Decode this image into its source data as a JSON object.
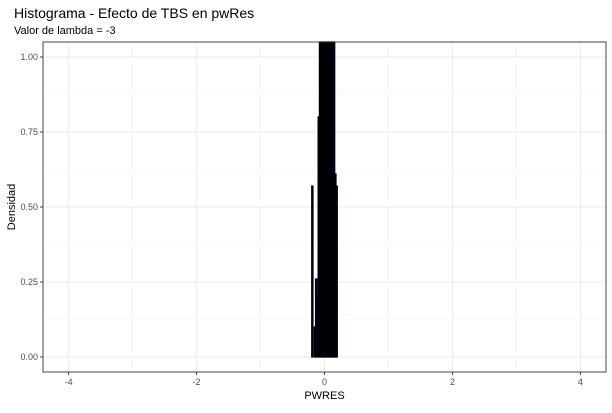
{
  "chart_data": {
    "type": "histogram",
    "title": "Histograma - Efecto de TBS en pwRes",
    "subtitle": "Valor de lambda = -3",
    "xlabel": "PWRES",
    "ylabel": "Densidad",
    "xlim": [
      -4.4,
      4.4
    ],
    "ylim": [
      -0.05,
      1.05
    ],
    "x_ticks": [
      {
        "value": -4,
        "label": "-4"
      },
      {
        "value": -2,
        "label": "-2"
      },
      {
        "value": 0,
        "label": "0"
      },
      {
        "value": 2,
        "label": "2"
      },
      {
        "value": 4,
        "label": "4"
      }
    ],
    "y_ticks": [
      {
        "value": 0,
        "label": "0.00"
      },
      {
        "value": 0.25,
        "label": "0.25"
      },
      {
        "value": 0.5,
        "label": "0.50"
      },
      {
        "value": 0.75,
        "label": "0.75"
      },
      {
        "value": 1,
        "label": "1.00"
      }
    ],
    "grid": true,
    "bar_fill": "#000080",
    "bar_outline": "#000000",
    "bins": [
      {
        "x0": -0.2,
        "x1": -0.18,
        "density": 0.57
      },
      {
        "x0": -0.18,
        "x1": -0.16,
        "density": 0.0
      },
      {
        "x0": -0.16,
        "x1": -0.14,
        "density": 0.1
      },
      {
        "x0": -0.14,
        "x1": -0.12,
        "density": 0.26
      },
      {
        "x0": -0.12,
        "x1": -0.1,
        "density": 0.2
      },
      {
        "x0": -0.1,
        "x1": -0.08,
        "density": 0.8
      },
      {
        "x0": -0.08,
        "x1": -0.06,
        "density": 1.05
      },
      {
        "x0": -0.06,
        "x1": -0.04,
        "density": 1.05
      },
      {
        "x0": -0.04,
        "x1": -0.02,
        "density": 1.05
      },
      {
        "x0": -0.02,
        "x1": 0.0,
        "density": 1.05
      },
      {
        "x0": 0.0,
        "x1": 0.02,
        "density": 1.05
      },
      {
        "x0": 0.02,
        "x1": 0.04,
        "density": 1.05
      },
      {
        "x0": 0.04,
        "x1": 0.06,
        "density": 1.05
      },
      {
        "x0": 0.06,
        "x1": 0.08,
        "density": 1.05
      },
      {
        "x0": 0.08,
        "x1": 0.1,
        "density": 1.05
      },
      {
        "x0": 0.1,
        "x1": 0.12,
        "density": 1.05
      },
      {
        "x0": 0.12,
        "x1": 0.14,
        "density": 1.05
      },
      {
        "x0": 0.14,
        "x1": 0.16,
        "density": 1.05
      },
      {
        "x0": 0.16,
        "x1": 0.18,
        "density": 0.61
      },
      {
        "x0": 0.18,
        "x1": 0.2,
        "density": 0.57
      }
    ]
  }
}
